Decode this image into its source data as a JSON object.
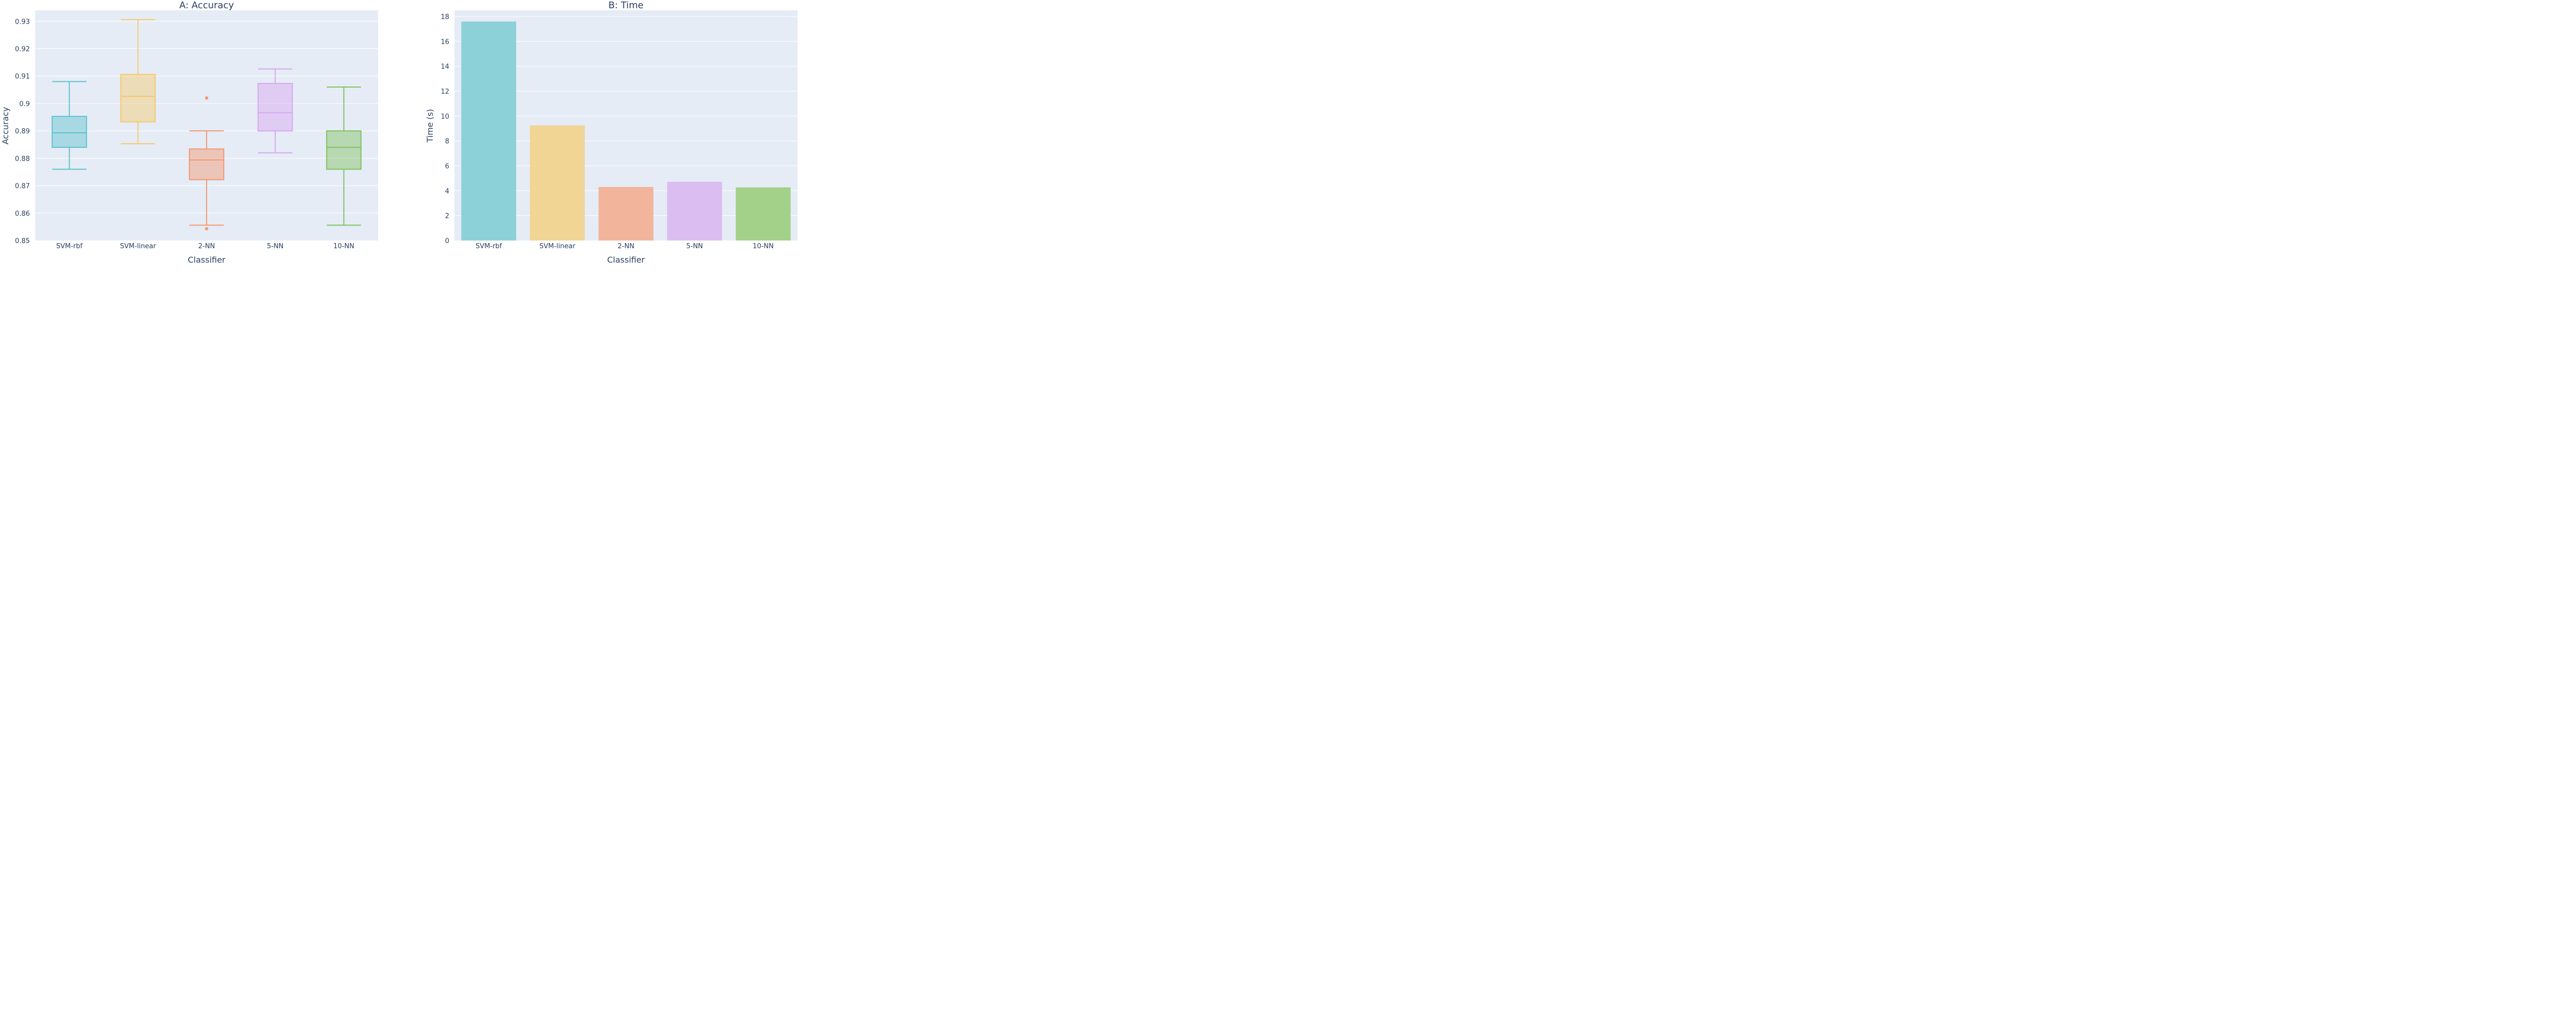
{
  "chart_data": [
    {
      "type": "box",
      "title": "A: Accuracy",
      "xlabel": "Classifier",
      "ylabel": "Accuracy",
      "ylim": [
        0.85,
        0.934
      ],
      "yticks": [
        "0.85",
        "0.86",
        "0.87",
        "0.88",
        "0.89",
        "0.9",
        "0.91",
        "0.92",
        "0.93"
      ],
      "grid": true,
      "categories": [
        "SVM-rbf",
        "SVM-linear",
        "2-NN",
        "5-NN",
        "10-NN"
      ],
      "boxes": [
        {
          "name": "SVM-rbf",
          "color": "#5ec2cb",
          "whisker_low": 0.876,
          "q1": 0.884,
          "median": 0.8893,
          "q3": 0.8953,
          "whisker_high": 0.908,
          "outliers": []
        },
        {
          "name": "SVM-linear",
          "color": "#f5c96b",
          "whisker_low": 0.8853,
          "q1": 0.8933,
          "median": 0.9026,
          "q3": 0.9106,
          "whisker_high": 0.9306,
          "outliers": []
        },
        {
          "name": "2-NN",
          "color": "#f5966e",
          "whisker_low": 0.8556,
          "q1": 0.8722,
          "median": 0.8794,
          "q3": 0.8834,
          "whisker_high": 0.89,
          "outliers": [
            0.902,
            0.8543
          ]
        },
        {
          "name": "5-NN",
          "color": "#d9a6f0",
          "whisker_low": 0.882,
          "q1": 0.89,
          "median": 0.8966,
          "q3": 0.9073,
          "whisker_high": 0.9126,
          "outliers": []
        },
        {
          "name": "10-NN",
          "color": "#7fc25e",
          "whisker_low": 0.8556,
          "q1": 0.876,
          "median": 0.884,
          "q3": 0.89,
          "whisker_high": 0.906,
          "outliers": []
        }
      ]
    },
    {
      "type": "bar",
      "title": "B: Time",
      "xlabel": "Classifier",
      "ylabel": "Time (s)",
      "ylim": [
        0,
        18.5
      ],
      "yticks": [
        "0",
        "2",
        "4",
        "6",
        "8",
        "10",
        "12",
        "14",
        "16",
        "18"
      ],
      "grid": true,
      "categories": [
        "SVM-rbf",
        "SVM-linear",
        "2-NN",
        "5-NN",
        "10-NN"
      ],
      "values": [
        17.6,
        9.25,
        4.3,
        4.72,
        4.27
      ],
      "colors": [
        "#8dd1d8",
        "#f0d594",
        "#f2b59b",
        "#dbbdf2",
        "#a3d18a"
      ]
    }
  ]
}
